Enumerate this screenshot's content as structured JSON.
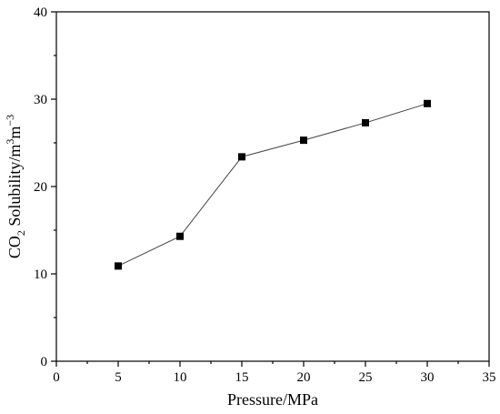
{
  "chart_data": {
    "type": "line",
    "title": "",
    "xlabel": "Pressure/MPa",
    "ylabel": {
      "base": "CO",
      "sub": "2",
      "rest": " Solubility/m",
      "sup1": "3",
      "mid": "m",
      "sup2": "−3"
    },
    "xlim": [
      0,
      35
    ],
    "ylim": [
      0,
      40
    ],
    "xticks": [
      "0",
      "5",
      "10",
      "15",
      "20",
      "25",
      "30",
      "35"
    ],
    "yticks": [
      "0",
      "10",
      "20",
      "30",
      "40"
    ],
    "grid": false,
    "legend": "none",
    "marker": "square",
    "series": [
      {
        "x": [
          5,
          10,
          15,
          20,
          25,
          30
        ],
        "y": [
          10.9,
          14.3,
          23.4,
          25.3,
          27.3,
          29.5
        ]
      }
    ],
    "colors": {
      "marker": "#000000",
      "line": "#444444"
    }
  }
}
